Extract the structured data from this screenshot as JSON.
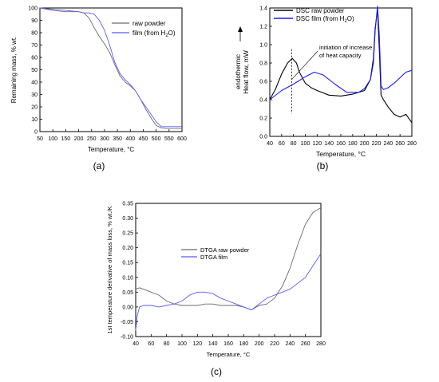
{
  "figure": {
    "panels": [
      {
        "label": "(a)"
      },
      {
        "label": "(b)"
      },
      {
        "label": "(c)"
      }
    ]
  },
  "chart_data": [
    {
      "type": "line",
      "panel": "(a)",
      "xlabel": "Temperature, ",
      "xlabel_unit": "°C",
      "ylabel": "Remaining mass, % wt.",
      "xlim": [
        50,
        600
      ],
      "ylim": [
        0,
        100
      ],
      "xticks": [
        50,
        100,
        150,
        200,
        250,
        300,
        350,
        400,
        450,
        500,
        550,
        600
      ],
      "yticks": [
        0,
        10,
        20,
        30,
        40,
        50,
        60,
        70,
        80,
        90,
        100
      ],
      "legend": "top-right",
      "series": [
        {
          "name": "raw powder",
          "color": "#6a6a6a",
          "x": [
            50,
            100,
            150,
            200,
            220,
            240,
            260,
            280,
            300,
            320,
            340,
            360,
            380,
            400,
            420,
            440,
            460,
            480,
            500,
            520,
            540,
            560,
            580,
            600
          ],
          "y": [
            100,
            99,
            98,
            97,
            96,
            92,
            84,
            77,
            71,
            64,
            54,
            45,
            40,
            37,
            33,
            26,
            18,
            11,
            5,
            3,
            2.5,
            2.5,
            2.5,
            2.5
          ]
        },
        {
          "name": "film (from H",
          "name_sub": "2",
          "name_tail": "O)",
          "color": "#5a5aff",
          "x": [
            50,
            100,
            150,
            200,
            220,
            240,
            260,
            280,
            300,
            320,
            340,
            360,
            380,
            400,
            420,
            440,
            460,
            480,
            500,
            520,
            540,
            560,
            580,
            600
          ],
          "y": [
            100,
            98,
            97,
            97,
            96,
            96,
            95,
            90,
            82,
            70,
            56,
            47,
            42,
            38,
            33,
            26,
            20,
            14,
            8,
            4,
            4,
            4,
            4,
            4
          ]
        }
      ]
    },
    {
      "type": "line",
      "panel": "(b)",
      "xlabel": "Temperature, ",
      "xlabel_unit": "°C",
      "ylabel": "Heat flow, mW",
      "ylabel_extra": "endothermic",
      "xlim": [
        40,
        280
      ],
      "ylim": [
        0.0,
        1.4
      ],
      "xticks": [
        40,
        60,
        80,
        100,
        120,
        140,
        160,
        180,
        200,
        220,
        240,
        260,
        280
      ],
      "yticks": [
        0.0,
        0.2,
        0.4,
        0.6,
        0.8,
        1.0,
        1.2,
        1.4
      ],
      "legend": "top-left",
      "annotation": {
        "text_line1": "initiation of increase",
        "text_line2": "of heat capacity",
        "x": 77,
        "y": 0.62
      },
      "vline_x": 77,
      "series": [
        {
          "name": "DSC raw powder",
          "color": "#000000",
          "x": [
            40,
            50,
            60,
            70,
            78,
            85,
            90,
            100,
            110,
            120,
            140,
            160,
            180,
            200,
            210,
            215,
            218,
            222,
            225,
            228,
            232,
            240,
            250,
            260,
            270,
            280
          ],
          "y": [
            0.4,
            0.52,
            0.68,
            0.8,
            0.85,
            0.8,
            0.7,
            0.58,
            0.53,
            0.5,
            0.45,
            0.44,
            0.46,
            0.5,
            0.62,
            0.85,
            1.18,
            1.38,
            0.95,
            0.45,
            0.4,
            0.32,
            0.24,
            0.21,
            0.24,
            0.15
          ]
        },
        {
          "name": "DSC film (from H",
          "name_sub": "2",
          "name_tail": "O)",
          "color": "#1a1aff",
          "x": [
            40,
            60,
            80,
            100,
            115,
            130,
            150,
            170,
            190,
            200,
            210,
            215,
            218,
            222,
            225,
            228,
            232,
            240,
            250,
            260,
            270,
            280
          ],
          "y": [
            0.4,
            0.5,
            0.57,
            0.65,
            0.7,
            0.67,
            0.57,
            0.48,
            0.48,
            0.52,
            0.62,
            0.8,
            1.15,
            1.42,
            1.1,
            0.55,
            0.51,
            0.53,
            0.58,
            0.64,
            0.7,
            0.72
          ]
        }
      ]
    },
    {
      "type": "line",
      "panel": "(c)",
      "xlabel": "Temperature, °C",
      "ylabel": "1st temperature derivative of mass loss, % wt./K",
      "xlim": [
        40,
        280
      ],
      "ylim": [
        -0.1,
        0.35
      ],
      "xticks": [
        40,
        60,
        80,
        100,
        120,
        140,
        160,
        180,
        200,
        220,
        240,
        260,
        280
      ],
      "yticks": [
        -0.1,
        -0.05,
        0.0,
        0.05,
        0.1,
        0.15,
        0.2,
        0.25,
        0.3,
        0.35
      ],
      "legend": "top-left",
      "series": [
        {
          "name": "DTGA raw powder",
          "color": "#6a6a6a",
          "x": [
            40,
            45,
            50,
            60,
            70,
            80,
            90,
            100,
            110,
            120,
            130,
            140,
            150,
            160,
            170,
            180,
            190,
            200,
            210,
            220,
            230,
            240,
            250,
            260,
            270,
            280
          ],
          "y": [
            0.06,
            0.065,
            0.06,
            0.05,
            0.04,
            0.02,
            0.01,
            0.005,
            0.005,
            0.005,
            0.01,
            0.01,
            0.005,
            0.005,
            0.005,
            0.0,
            -0.01,
            0.005,
            0.01,
            0.03,
            0.07,
            0.13,
            0.21,
            0.28,
            0.32,
            0.335
          ]
        },
        {
          "name": "DTGA film",
          "color": "#5a5aff",
          "x": [
            40,
            42,
            45,
            50,
            60,
            70,
            80,
            90,
            100,
            110,
            120,
            130,
            140,
            150,
            160,
            170,
            180,
            190,
            200,
            210,
            220,
            230,
            240,
            250,
            260,
            270,
            280
          ],
          "y": [
            -0.08,
            -0.03,
            0.0,
            0.005,
            0.005,
            0.0,
            0.005,
            0.01,
            0.02,
            0.04,
            0.05,
            0.05,
            0.045,
            0.03,
            0.02,
            0.01,
            0.0,
            -0.01,
            0.01,
            0.03,
            0.04,
            0.05,
            0.06,
            0.08,
            0.1,
            0.14,
            0.18
          ]
        }
      ]
    }
  ]
}
